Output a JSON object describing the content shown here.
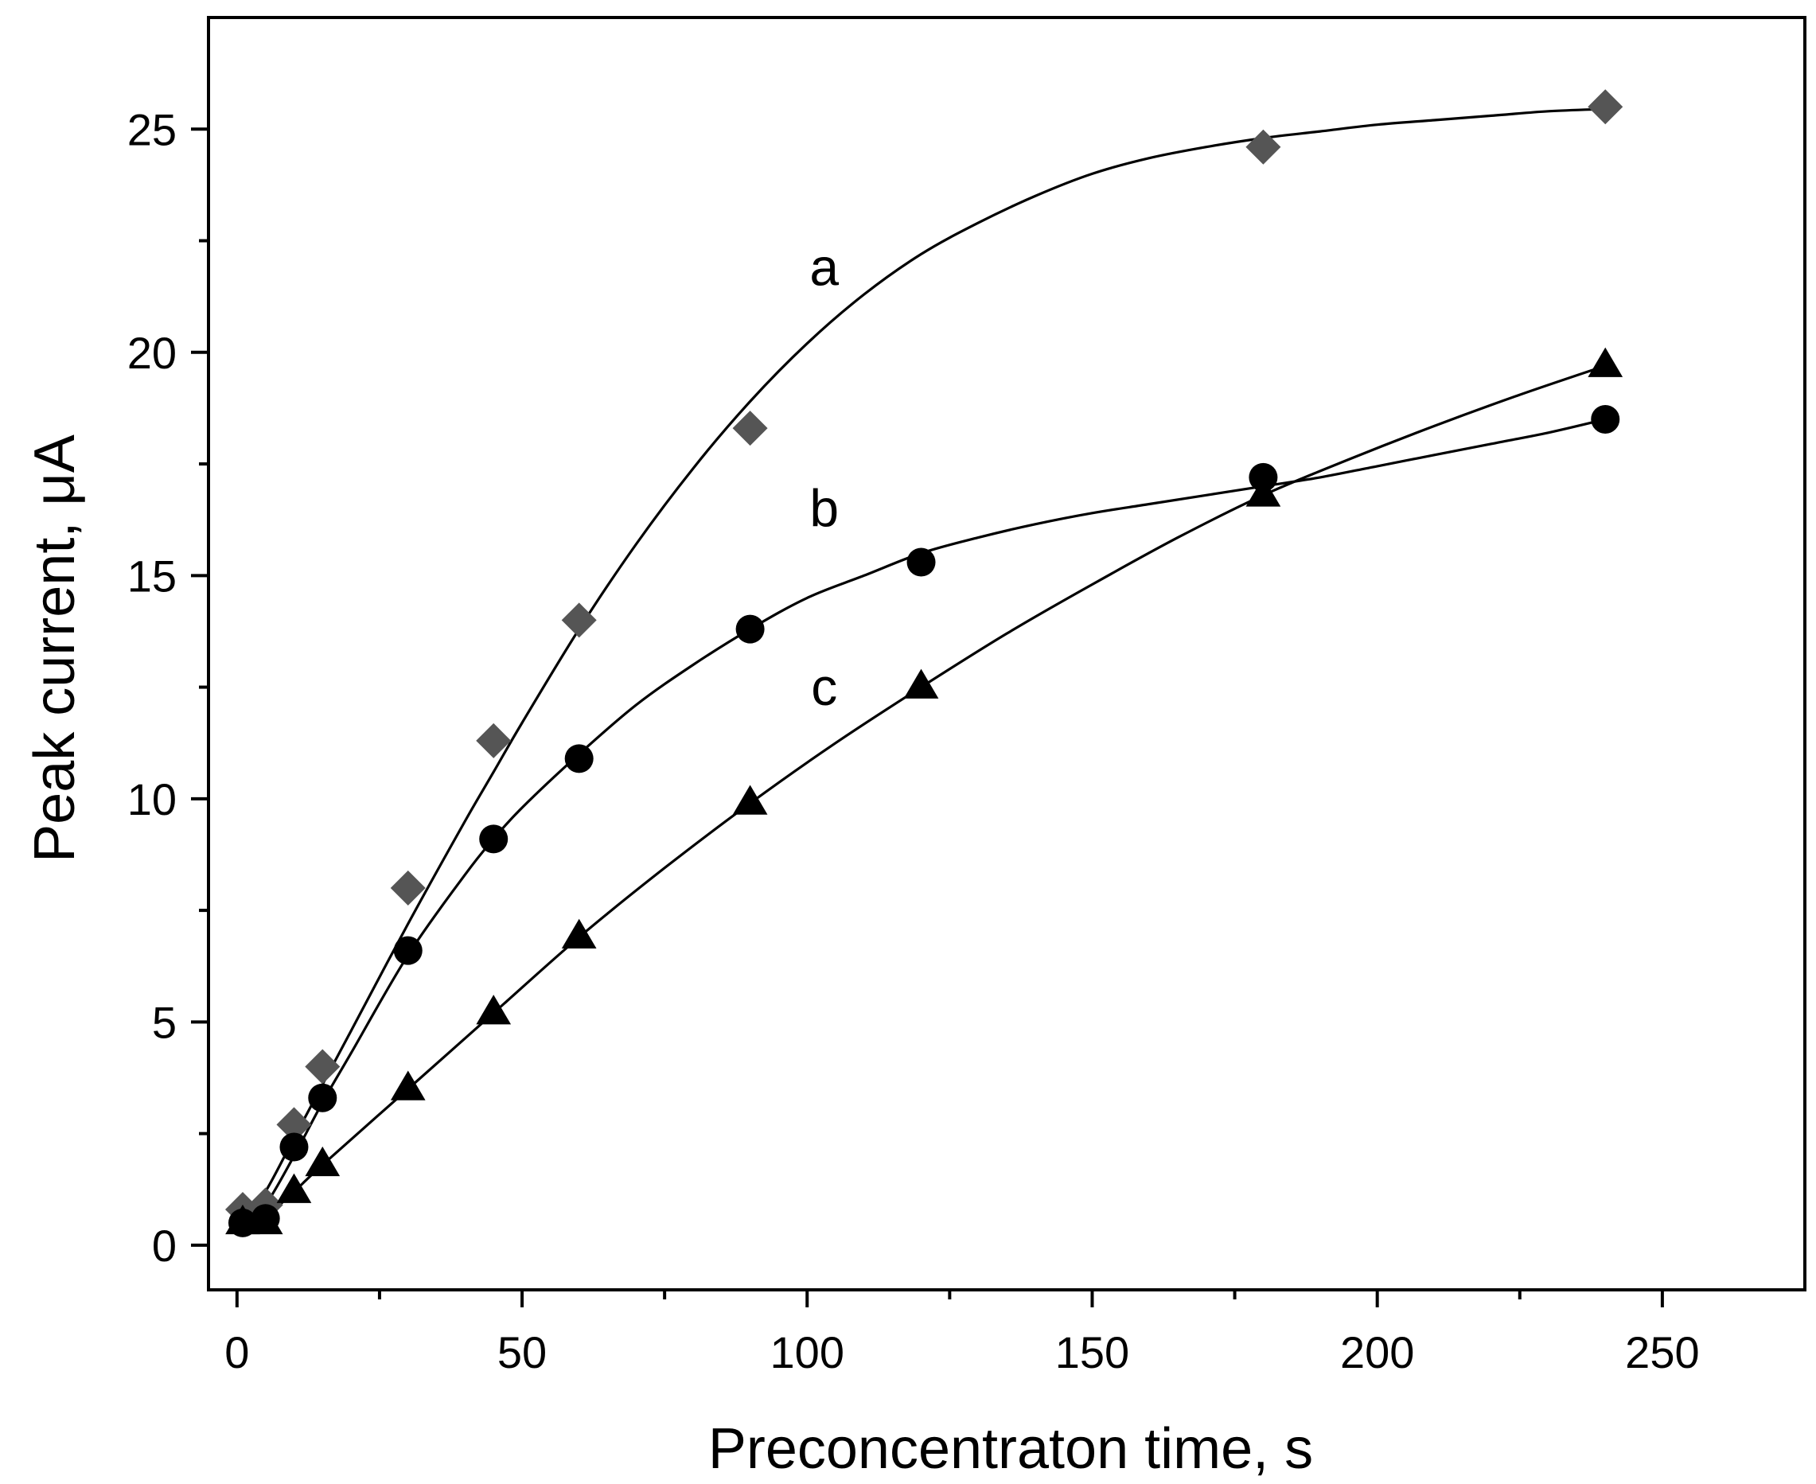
{
  "chart_data": {
    "type": "scatter",
    "title": "",
    "xlabel": "Preconcentraton time, s",
    "ylabel": "Peak current, μA",
    "xlim": [
      -5,
      275
    ],
    "ylim": [
      -1,
      27.5
    ],
    "xticks": [
      0,
      50,
      100,
      150,
      200,
      250
    ],
    "xtick_labels": [
      "0",
      "50",
      "100",
      "150",
      "200",
      "250"
    ],
    "yticks": [
      0,
      5,
      10,
      15,
      20,
      25
    ],
    "ytick_labels": [
      "0",
      "5",
      "10",
      "15",
      "20",
      "25"
    ],
    "grid": false,
    "legend": "none",
    "series": [
      {
        "name": "a",
        "label": "a",
        "marker": "diamond",
        "color": "#555555",
        "label_at": [
          103,
          21.5
        ],
        "x": [
          1,
          5,
          10,
          15,
          30,
          45,
          60,
          90,
          180,
          240
        ],
        "y": [
          0.8,
          0.9,
          2.7,
          4.0,
          8.0,
          11.3,
          14.0,
          18.3,
          24.6,
          25.5
        ],
        "fit_x": [
          1,
          5,
          10,
          15,
          20,
          30,
          40,
          45,
          50,
          60,
          70,
          80,
          90,
          100,
          110,
          120,
          130,
          140,
          150,
          160,
          170,
          180,
          190,
          200,
          210,
          220,
          230,
          240
        ],
        "fit_y": [
          0.5,
          1.2,
          2.4,
          3.6,
          4.8,
          7.2,
          9.5,
          10.6,
          11.7,
          13.8,
          15.7,
          17.4,
          18.9,
          20.2,
          21.3,
          22.2,
          22.9,
          23.5,
          24.0,
          24.35,
          24.6,
          24.8,
          24.95,
          25.1,
          25.2,
          25.3,
          25.4,
          25.45
        ]
      },
      {
        "name": "b",
        "label": "b",
        "marker": "circle",
        "color": "#000000",
        "label_at": [
          103,
          16.1
        ],
        "x": [
          1,
          5,
          10,
          15,
          30,
          45,
          60,
          90,
          120,
          180,
          240
        ],
        "y": [
          0.5,
          0.6,
          2.2,
          3.3,
          6.6,
          9.1,
          10.9,
          13.8,
          15.3,
          17.2,
          18.5
        ],
        "fit_x": [
          1,
          5,
          10,
          15,
          20,
          30,
          40,
          45,
          50,
          60,
          70,
          80,
          90,
          100,
          110,
          120,
          130,
          140,
          150,
          160,
          170,
          180,
          190,
          200,
          210,
          220,
          230,
          240
        ],
        "fit_y": [
          0.4,
          0.9,
          2.0,
          3.2,
          4.3,
          6.5,
          8.3,
          9.1,
          9.8,
          11.0,
          12.1,
          13.0,
          13.8,
          14.5,
          15.0,
          15.5,
          15.85,
          16.15,
          16.4,
          16.6,
          16.8,
          17.0,
          17.2,
          17.45,
          17.7,
          17.95,
          18.2,
          18.5
        ]
      },
      {
        "name": "c",
        "label": "c",
        "marker": "triangle",
        "color": "#000000",
        "label_at": [
          103,
          12.1
        ],
        "x": [
          1,
          5,
          10,
          15,
          30,
          45,
          60,
          90,
          120,
          180,
          240
        ],
        "y": [
          0.5,
          0.5,
          1.2,
          1.8,
          3.5,
          5.2,
          6.9,
          9.9,
          12.5,
          16.8,
          19.7
        ],
        "fit_x": [
          1,
          5,
          10,
          15,
          30,
          45,
          60,
          75,
          90,
          105,
          120,
          135,
          150,
          165,
          180,
          195,
          210,
          225,
          240
        ],
        "fit_y": [
          0.5,
          0.65,
          1.2,
          1.8,
          3.5,
          5.2,
          6.9,
          8.45,
          9.9,
          11.25,
          12.5,
          13.7,
          14.8,
          15.85,
          16.8,
          17.6,
          18.35,
          19.05,
          19.7
        ]
      }
    ]
  }
}
